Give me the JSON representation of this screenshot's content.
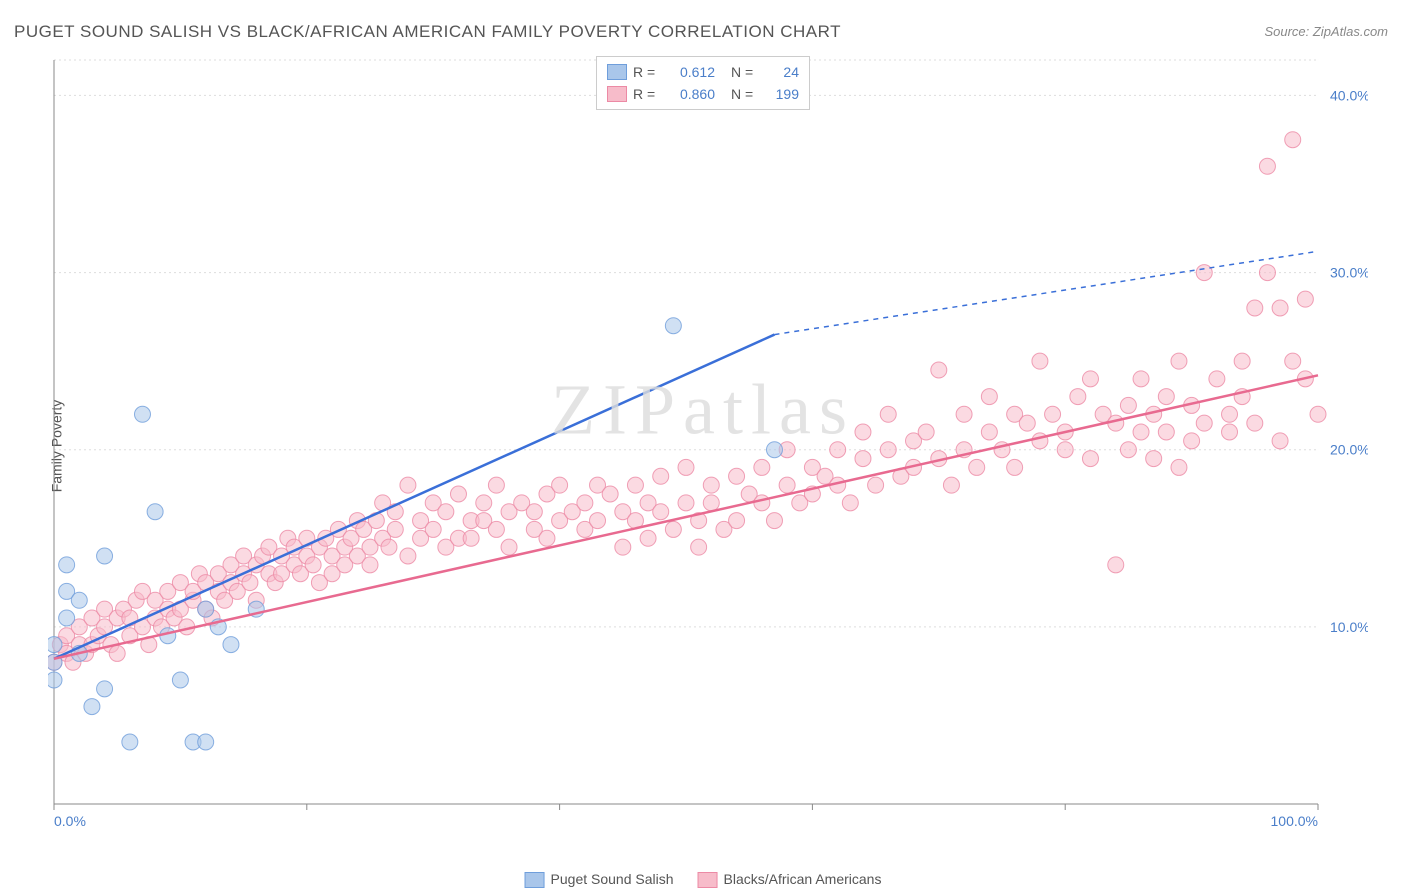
{
  "title": "PUGET SOUND SALISH VS BLACK/AFRICAN AMERICAN FAMILY POVERTY CORRELATION CHART",
  "source": "Source: ZipAtlas.com",
  "ylabel": "Family Poverty",
  "watermark": "ZIPatlas",
  "chart": {
    "type": "scatter",
    "background_color": "#ffffff",
    "grid_color": "#dddddd",
    "grid_dash": "2,3",
    "axis_color": "#888888",
    "tick_color": "#888888",
    "xlim": [
      0,
      100
    ],
    "ylim": [
      0,
      42
    ],
    "x_ticks": [
      0,
      20,
      40,
      60,
      80,
      100
    ],
    "x_tick_labels": [
      "0.0%",
      "",
      "",
      "",
      "",
      "100.0%"
    ],
    "y_ticks": [
      10,
      20,
      30,
      40
    ],
    "y_tick_labels": [
      "10.0%",
      "20.0%",
      "30.0%",
      "40.0%"
    ],
    "marker_radius": 8,
    "marker_opacity": 0.55,
    "line_width": 2.5,
    "label_color": "#4a7ec9",
    "label_fontsize": 14,
    "series": [
      {
        "id": "salish",
        "label": "Puget Sound Salish",
        "fill_color": "#a9c6ea",
        "stroke_color": "#6f9edb",
        "line_color": "#3a6fd8",
        "R": "0.612",
        "N": "24",
        "trend": {
          "x1": 0,
          "y1": 8.2,
          "x2": 57,
          "y2": 26.5,
          "x2_ext": 100,
          "y2_ext": 31.2
        },
        "points": [
          [
            0,
            7
          ],
          [
            0,
            8
          ],
          [
            0,
            9
          ],
          [
            1,
            10.5
          ],
          [
            1,
            12
          ],
          [
            1,
            13.5
          ],
          [
            2,
            8.5
          ],
          [
            2,
            11.5
          ],
          [
            3,
            5.5
          ],
          [
            4,
            6.5
          ],
          [
            4,
            14
          ],
          [
            6,
            3.5
          ],
          [
            7,
            22
          ],
          [
            8,
            16.5
          ],
          [
            9,
            9.5
          ],
          [
            10,
            7
          ],
          [
            11,
            3.5
          ],
          [
            12,
            3.5
          ],
          [
            12,
            11
          ],
          [
            13,
            10
          ],
          [
            14,
            9
          ],
          [
            16,
            11
          ],
          [
            49,
            27
          ],
          [
            57,
            20
          ]
        ]
      },
      {
        "id": "black",
        "label": "Blacks/African Americans",
        "fill_color": "#f7bcca",
        "stroke_color": "#ec8aa5",
        "line_color": "#e86a90",
        "R": "0.860",
        "N": "199",
        "trend": {
          "x1": 0,
          "y1": 8.2,
          "x2": 100,
          "y2": 24.2
        },
        "points": [
          [
            0,
            8
          ],
          [
            0.5,
            9
          ],
          [
            1,
            8.5
          ],
          [
            1,
            9.5
          ],
          [
            1.5,
            8
          ],
          [
            2,
            9
          ],
          [
            2,
            10
          ],
          [
            2.5,
            8.5
          ],
          [
            3,
            9
          ],
          [
            3,
            10.5
          ],
          [
            3.5,
            9.5
          ],
          [
            4,
            10
          ],
          [
            4,
            11
          ],
          [
            4.5,
            9
          ],
          [
            5,
            10.5
          ],
          [
            5,
            8.5
          ],
          [
            5.5,
            11
          ],
          [
            6,
            9.5
          ],
          [
            6,
            10.5
          ],
          [
            6.5,
            11.5
          ],
          [
            7,
            10
          ],
          [
            7,
            12
          ],
          [
            7.5,
            9
          ],
          [
            8,
            10.5
          ],
          [
            8,
            11.5
          ],
          [
            8.5,
            10
          ],
          [
            9,
            11
          ],
          [
            9,
            12
          ],
          [
            9.5,
            10.5
          ],
          [
            10,
            11
          ],
          [
            10,
            12.5
          ],
          [
            10.5,
            10
          ],
          [
            11,
            11.5
          ],
          [
            11,
            12
          ],
          [
            11.5,
            13
          ],
          [
            12,
            11
          ],
          [
            12,
            12.5
          ],
          [
            12.5,
            10.5
          ],
          [
            13,
            12
          ],
          [
            13,
            13
          ],
          [
            13.5,
            11.5
          ],
          [
            14,
            12.5
          ],
          [
            14,
            13.5
          ],
          [
            14.5,
            12
          ],
          [
            15,
            13
          ],
          [
            15,
            14
          ],
          [
            15.5,
            12.5
          ],
          [
            16,
            13.5
          ],
          [
            16,
            11.5
          ],
          [
            16.5,
            14
          ],
          [
            17,
            13
          ],
          [
            17,
            14.5
          ],
          [
            17.5,
            12.5
          ],
          [
            18,
            14
          ],
          [
            18,
            13
          ],
          [
            18.5,
            15
          ],
          [
            19,
            13.5
          ],
          [
            19,
            14.5
          ],
          [
            19.5,
            13
          ],
          [
            20,
            14
          ],
          [
            20,
            15
          ],
          [
            20.5,
            13.5
          ],
          [
            21,
            14.5
          ],
          [
            21,
            12.5
          ],
          [
            21.5,
            15
          ],
          [
            22,
            14
          ],
          [
            22,
            13
          ],
          [
            22.5,
            15.5
          ],
          [
            23,
            14.5
          ],
          [
            23,
            13.5
          ],
          [
            23.5,
            15
          ],
          [
            24,
            14
          ],
          [
            24,
            16
          ],
          [
            24.5,
            15.5
          ],
          [
            25,
            14.5
          ],
          [
            25,
            13.5
          ],
          [
            25.5,
            16
          ],
          [
            26,
            15
          ],
          [
            26,
            17
          ],
          [
            26.5,
            14.5
          ],
          [
            27,
            15.5
          ],
          [
            27,
            16.5
          ],
          [
            28,
            14
          ],
          [
            28,
            18
          ],
          [
            29,
            15
          ],
          [
            29,
            16
          ],
          [
            30,
            15.5
          ],
          [
            30,
            17
          ],
          [
            31,
            14.5
          ],
          [
            31,
            16.5
          ],
          [
            32,
            15
          ],
          [
            32,
            17.5
          ],
          [
            33,
            16
          ],
          [
            33,
            15
          ],
          [
            34,
            17
          ],
          [
            34,
            16
          ],
          [
            35,
            15.5
          ],
          [
            35,
            18
          ],
          [
            36,
            16.5
          ],
          [
            36,
            14.5
          ],
          [
            37,
            17
          ],
          [
            38,
            15.5
          ],
          [
            38,
            16.5
          ],
          [
            39,
            17.5
          ],
          [
            39,
            15
          ],
          [
            40,
            16
          ],
          [
            40,
            18
          ],
          [
            41,
            16.5
          ],
          [
            42,
            17
          ],
          [
            42,
            15.5
          ],
          [
            43,
            18
          ],
          [
            43,
            16
          ],
          [
            44,
            17.5
          ],
          [
            45,
            16.5
          ],
          [
            45,
            14.5
          ],
          [
            46,
            18
          ],
          [
            46,
            16
          ],
          [
            47,
            15
          ],
          [
            47,
            17
          ],
          [
            48,
            18.5
          ],
          [
            48,
            16.5
          ],
          [
            49,
            15.5
          ],
          [
            50,
            17
          ],
          [
            50,
            19
          ],
          [
            51,
            16
          ],
          [
            51,
            14.5
          ],
          [
            52,
            18
          ],
          [
            52,
            17
          ],
          [
            53,
            15.5
          ],
          [
            54,
            18.5
          ],
          [
            54,
            16
          ],
          [
            55,
            17.5
          ],
          [
            56,
            19
          ],
          [
            56,
            17
          ],
          [
            57,
            16
          ],
          [
            58,
            18
          ],
          [
            58,
            20
          ],
          [
            59,
            17
          ],
          [
            60,
            19
          ],
          [
            60,
            17.5
          ],
          [
            61,
            18.5
          ],
          [
            62,
            18
          ],
          [
            62,
            20
          ],
          [
            63,
            17
          ],
          [
            64,
            19.5
          ],
          [
            64,
            21
          ],
          [
            65,
            18
          ],
          [
            66,
            20
          ],
          [
            66,
            22
          ],
          [
            67,
            18.5
          ],
          [
            68,
            20.5
          ],
          [
            68,
            19
          ],
          [
            69,
            21
          ],
          [
            70,
            19.5
          ],
          [
            70,
            24.5
          ],
          [
            71,
            18
          ],
          [
            72,
            20
          ],
          [
            72,
            22
          ],
          [
            73,
            19
          ],
          [
            74,
            21
          ],
          [
            74,
            23
          ],
          [
            75,
            20
          ],
          [
            76,
            22
          ],
          [
            76,
            19
          ],
          [
            77,
            21.5
          ],
          [
            78,
            20.5
          ],
          [
            78,
            25
          ],
          [
            79,
            22
          ],
          [
            80,
            21
          ],
          [
            80,
            20
          ],
          [
            81,
            23
          ],
          [
            82,
            19.5
          ],
          [
            82,
            24
          ],
          [
            83,
            22
          ],
          [
            84,
            21.5
          ],
          [
            84,
            13.5
          ],
          [
            85,
            20
          ],
          [
            85,
            22.5
          ],
          [
            86,
            21
          ],
          [
            86,
            24
          ],
          [
            87,
            22
          ],
          [
            87,
            19.5
          ],
          [
            88,
            23
          ],
          [
            88,
            21
          ],
          [
            89,
            25
          ],
          [
            89,
            19
          ],
          [
            90,
            22.5
          ],
          [
            90,
            20.5
          ],
          [
            91,
            21.5
          ],
          [
            91,
            30
          ],
          [
            92,
            24
          ],
          [
            93,
            22
          ],
          [
            93,
            21
          ],
          [
            94,
            23
          ],
          [
            94,
            25
          ],
          [
            95,
            21.5
          ],
          [
            95,
            28
          ],
          [
            96,
            30
          ],
          [
            96,
            36
          ],
          [
            97,
            28
          ],
          [
            97,
            20.5
          ],
          [
            98,
            25
          ],
          [
            98,
            37.5
          ],
          [
            99,
            24
          ],
          [
            99,
            28.5
          ],
          [
            100,
            22
          ]
        ]
      }
    ]
  },
  "legend_top": {
    "border_color": "#cccccc",
    "text_color_label": "#555555",
    "text_color_value": "#4a7ec9"
  },
  "legend_bottom_series": [
    "salish",
    "black"
  ]
}
